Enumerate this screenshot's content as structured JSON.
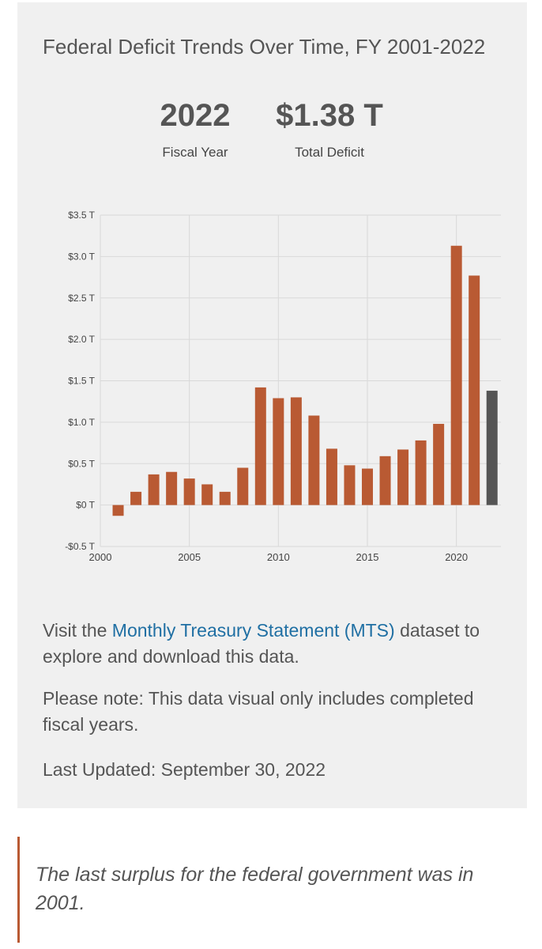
{
  "title": "Federal Deficit Trends Over Time, FY 2001-2022",
  "summary": {
    "year_value": "2022",
    "year_label": "Fiscal Year",
    "deficit_value": "$1.38 T",
    "deficit_label": "Total Deficit"
  },
  "chart_data": {
    "type": "bar",
    "title": "",
    "xlabel": "",
    "ylabel": "",
    "x": [
      2001,
      2002,
      2003,
      2004,
      2005,
      2006,
      2007,
      2008,
      2009,
      2010,
      2011,
      2012,
      2013,
      2014,
      2015,
      2016,
      2017,
      2018,
      2019,
      2020,
      2021,
      2022
    ],
    "values": [
      -0.13,
      0.16,
      0.37,
      0.4,
      0.32,
      0.25,
      0.16,
      0.45,
      1.42,
      1.29,
      1.3,
      1.08,
      0.68,
      0.48,
      0.44,
      0.59,
      0.67,
      0.78,
      0.98,
      3.13,
      2.77,
      1.38
    ],
    "highlight_index": 21,
    "ylim": [
      -0.5,
      3.5
    ],
    "yticks": [
      -0.5,
      0,
      0.5,
      1.0,
      1.5,
      2.0,
      2.5,
      3.0,
      3.5
    ],
    "ytick_labels": [
      "-$0.5 T",
      "$0 T",
      "$0.5 T",
      "$1.0 T",
      "$1.5 T",
      "$2.0 T",
      "$2.5 T",
      "$3.0 T",
      "$3.5 T"
    ],
    "xticks": [
      2000,
      2005,
      2010,
      2015,
      2020
    ],
    "xtick_labels": [
      "2000",
      "2005",
      "2010",
      "2015",
      "2020"
    ],
    "xlim": [
      2000,
      2022.5
    ],
    "grid": true,
    "colors": {
      "bar": "#b95a33",
      "highlight": "#555555",
      "grid": "#d9d9d9"
    }
  },
  "notes": {
    "visit_prefix": "Visit the ",
    "visit_link": "Monthly Treasury Statement (MTS)",
    "visit_suffix": " dataset to explore and download this data.",
    "please_note": "Please note: This data visual only includes completed fiscal years.",
    "last_updated": "Last Updated: September 30, 2022"
  },
  "quote": "The last surplus for the federal government was in 2001."
}
